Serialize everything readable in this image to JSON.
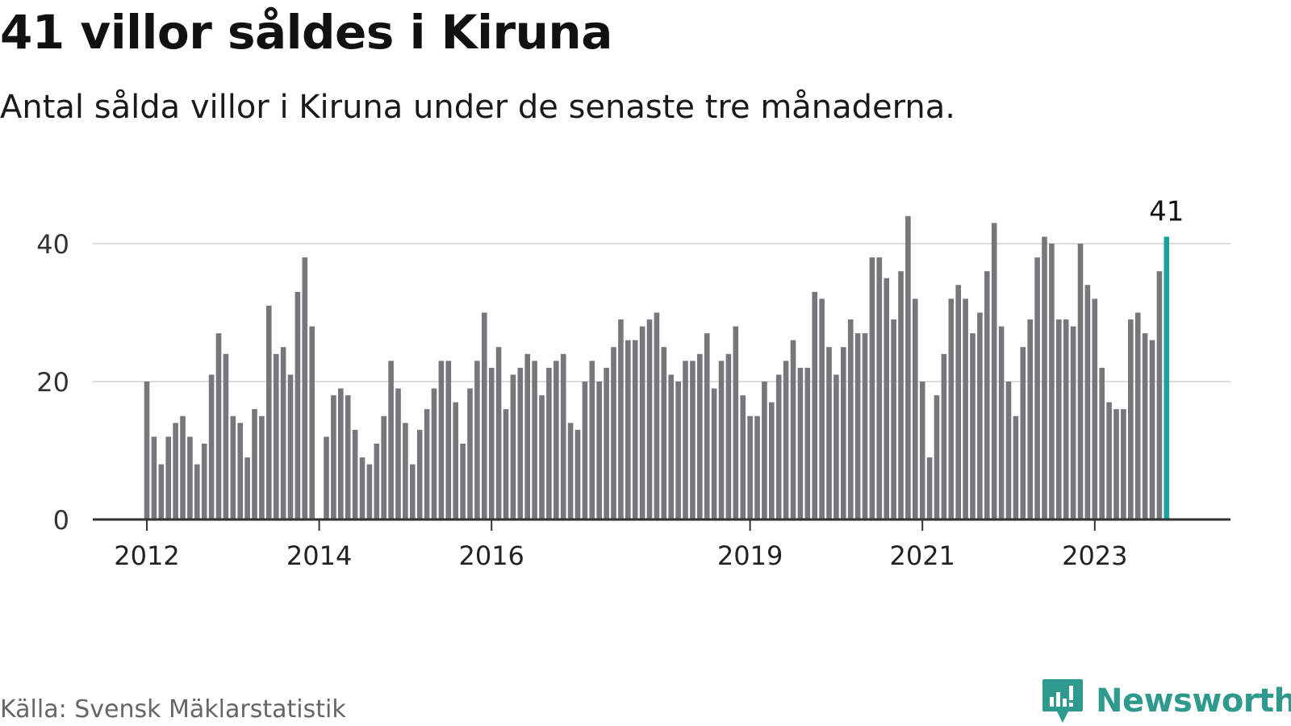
{
  "title": "41 villor såldes i Kiruna",
  "subtitle": "Antal sålda villor i Kiruna under de senaste tre månaderna.",
  "source": "Källa: Svensk Mäklarstatistik",
  "brand": {
    "name": "Newsworthy",
    "icon": "newsworthy-logo-icon",
    "color": "#2e9a8e"
  },
  "chart_data": {
    "type": "bar",
    "title": "",
    "xlabel": "",
    "ylabel": "",
    "ylim": [
      0,
      46
    ],
    "yticks": [
      "0",
      "20",
      "40"
    ],
    "xtick_labels": [
      {
        "label": "2012",
        "index": 0
      },
      {
        "label": "2014",
        "index": 24
      },
      {
        "label": "2016",
        "index": 48
      },
      {
        "label": "2019",
        "index": 84
      },
      {
        "label": "2021",
        "index": 108
      },
      {
        "label": "2023",
        "index": 132
      }
    ],
    "grid": "horizontal",
    "bar_color": "#77767b",
    "highlight_color": "#1aa39a",
    "highlight_label": "41",
    "values": [
      20,
      12,
      8,
      12,
      14,
      15,
      12,
      8,
      11,
      21,
      27,
      24,
      15,
      14,
      9,
      16,
      15,
      31,
      24,
      25,
      21,
      33,
      38,
      28,
      0,
      12,
      18,
      19,
      18,
      13,
      9,
      8,
      11,
      15,
      23,
      19,
      14,
      8,
      13,
      16,
      19,
      23,
      23,
      17,
      11,
      19,
      23,
      30,
      22,
      25,
      16,
      21,
      22,
      24,
      23,
      18,
      22,
      23,
      24,
      14,
      13,
      20,
      23,
      20,
      22,
      25,
      29,
      26,
      26,
      28,
      29,
      30,
      25,
      21,
      20,
      23,
      23,
      24,
      27,
      19,
      23,
      24,
      28,
      18,
      15,
      15,
      20,
      17,
      21,
      23,
      26,
      22,
      22,
      33,
      32,
      25,
      21,
      25,
      29,
      27,
      27,
      38,
      38,
      35,
      29,
      36,
      44,
      32,
      20,
      9,
      18,
      24,
      32,
      34,
      32,
      27,
      30,
      36,
      43,
      28,
      20,
      15,
      25,
      29,
      38,
      41,
      40,
      29,
      29,
      28,
      40,
      34,
      32,
      22,
      17,
      16,
      16,
      29,
      30,
      27,
      26,
      36,
      41
    ]
  }
}
